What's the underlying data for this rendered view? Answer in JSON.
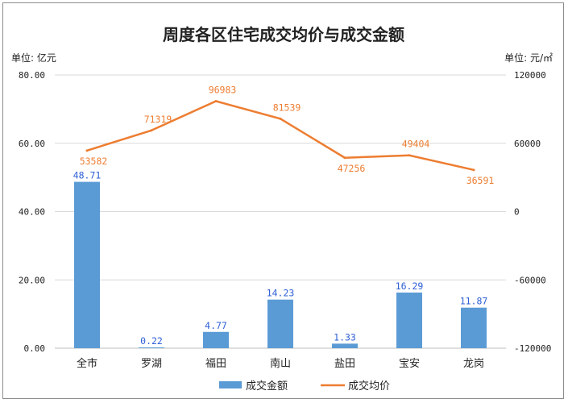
{
  "chart_data": {
    "type": "bar+line",
    "title": "周度各区住宅成交均价与成交金额",
    "left_unit": "单位: 亿元",
    "right_unit": "单位: 元/㎡",
    "categories": [
      "全市",
      "罗湖",
      "福田",
      "南山",
      "盐田",
      "宝安",
      "龙岗"
    ],
    "y_left": {
      "min": 0,
      "max": 80,
      "ticks": [
        "0.00",
        "20.00",
        "40.00",
        "60.00",
        "80.00"
      ]
    },
    "y_right": {
      "min": -120000,
      "max": 120000,
      "ticks": [
        "-120000",
        "-60000",
        "0",
        "60000",
        "120000"
      ]
    },
    "series": [
      {
        "name": "成交金额",
        "kind": "bar",
        "axis": "left",
        "color": "#5b9bd5",
        "values": [
          48.71,
          0.22,
          4.77,
          14.23,
          1.33,
          16.29,
          11.87
        ],
        "labels": [
          "48.71",
          "0.22",
          "4.77",
          "14.23",
          "1.33",
          "16.29",
          "11.87"
        ],
        "label_color": "#2e5fd6"
      },
      {
        "name": "成交均价",
        "kind": "line",
        "axis": "right",
        "color": "#ed7d31",
        "values": [
          53582,
          71319,
          96983,
          81539,
          47256,
          49404,
          36591
        ],
        "labels": [
          "53582",
          "71319",
          "96983",
          "81539",
          "47256",
          "49404",
          "36591"
        ],
        "label_color": "#ed7d31"
      }
    ],
    "legend_position": "bottom",
    "grid": "horizontal"
  }
}
